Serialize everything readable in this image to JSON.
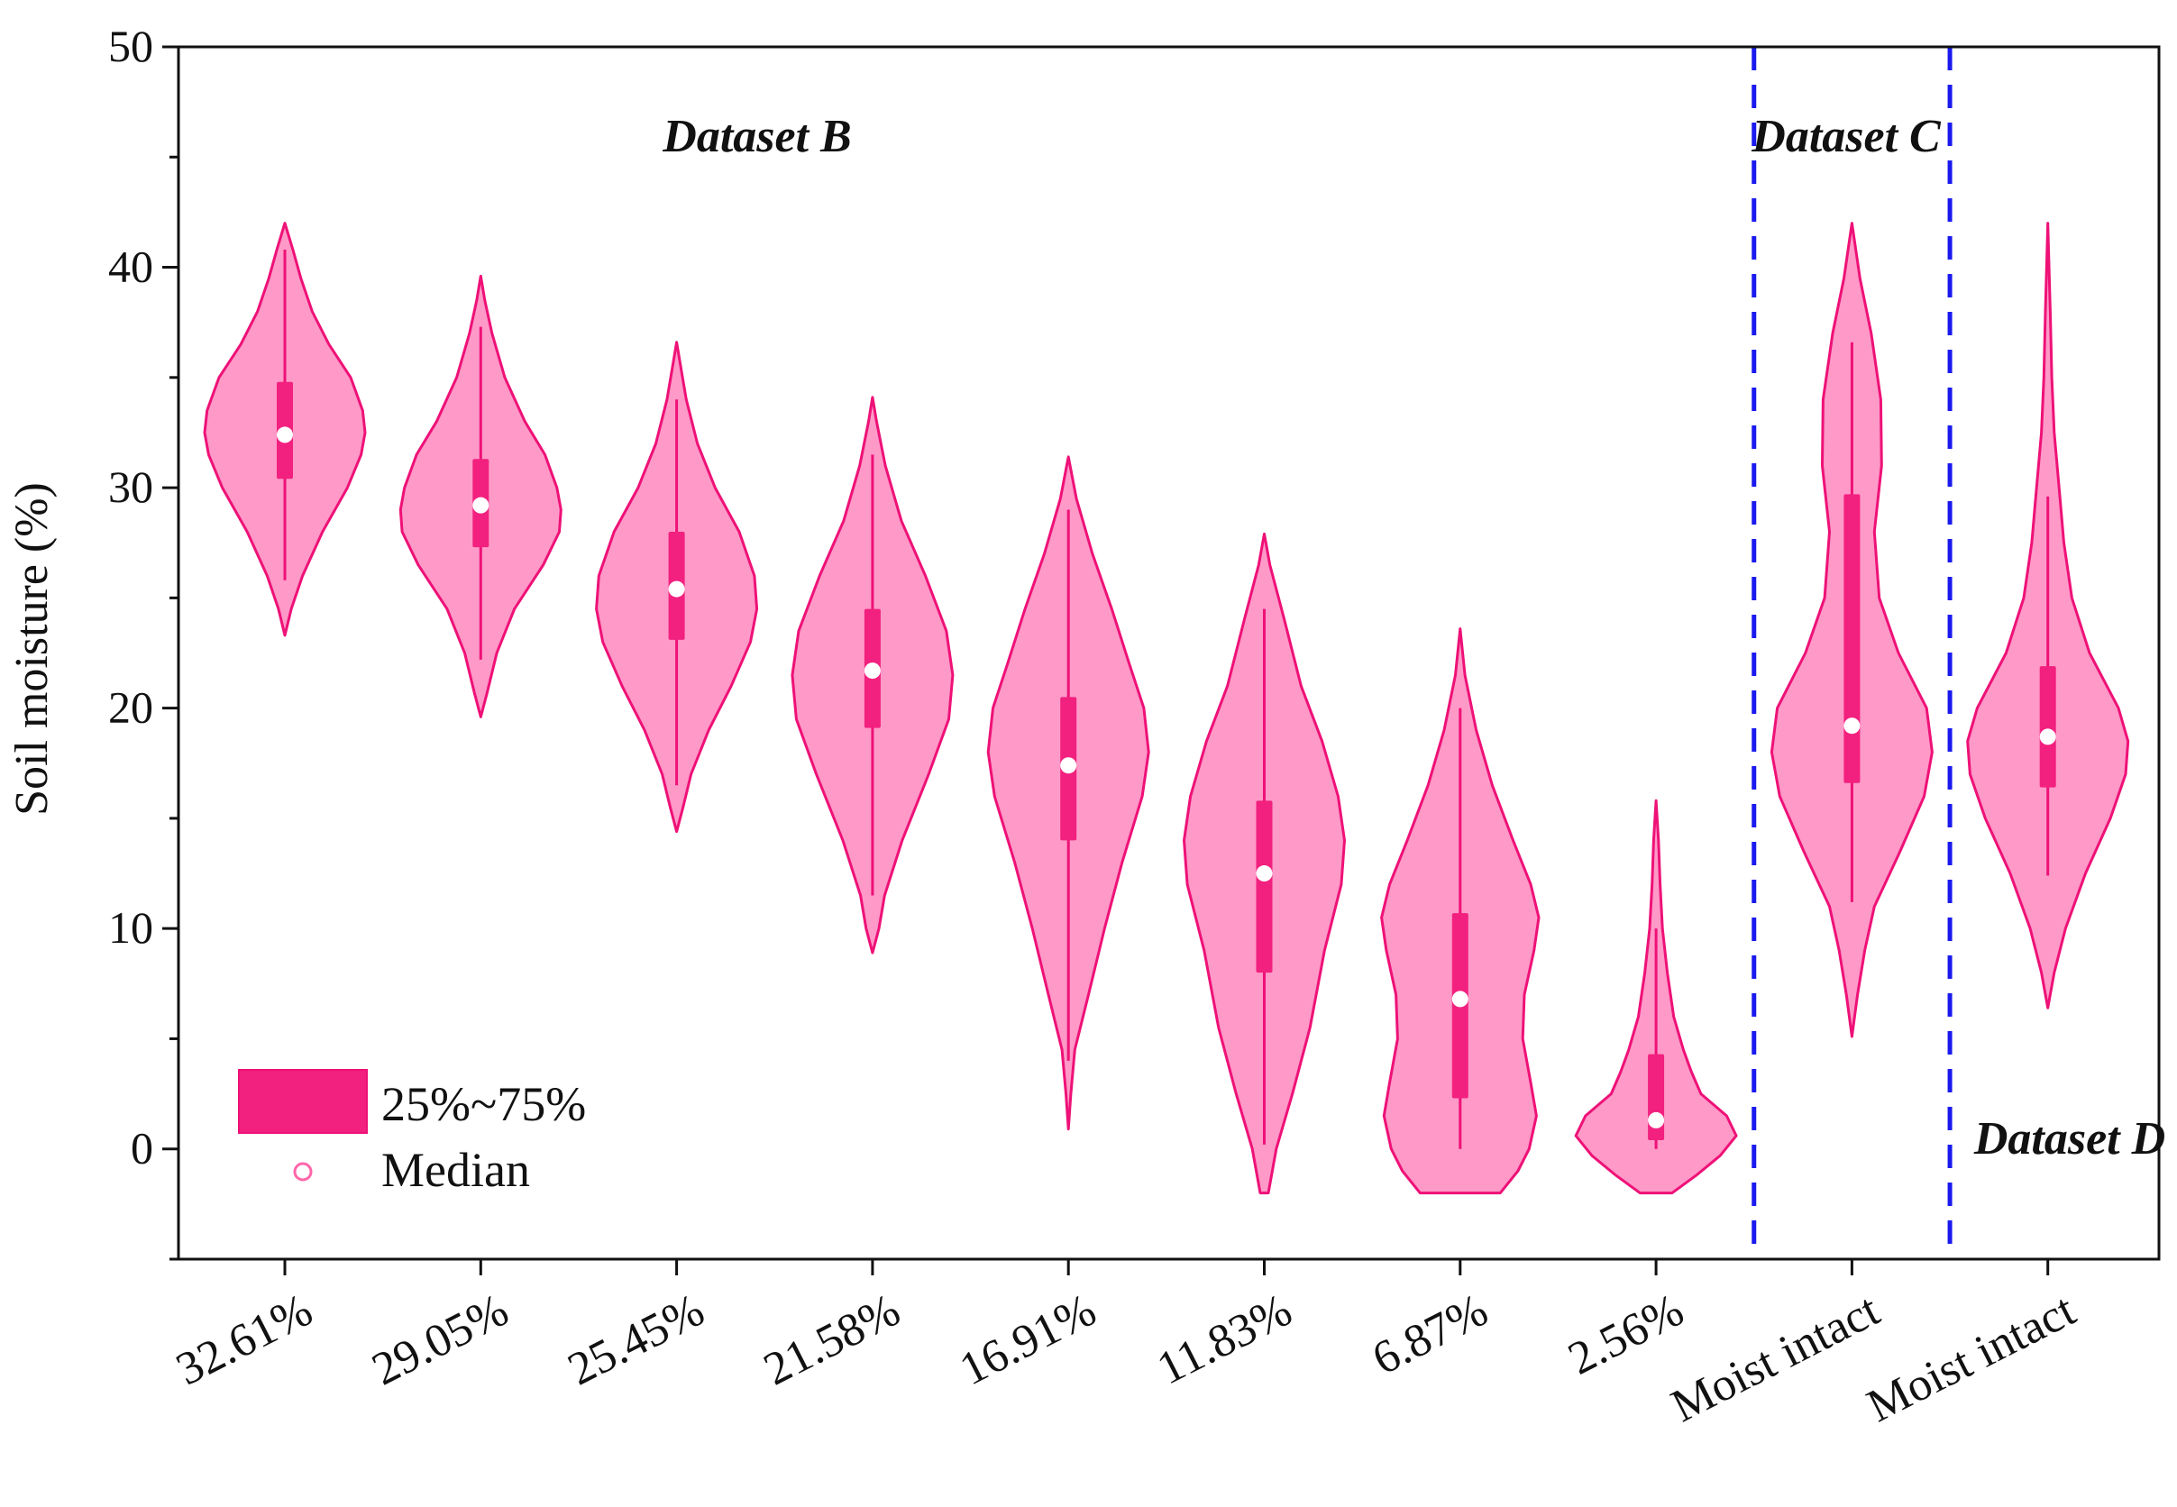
{
  "chart_data": {
    "type": "violin",
    "ylabel": "Soil moisture (%)",
    "xlabel": "",
    "ylim": [
      -5,
      50
    ],
    "yticks": [
      0,
      10,
      20,
      30,
      40,
      50
    ],
    "ytick_labels": [
      "0",
      "10",
      "20",
      "30",
      "40",
      "50"
    ],
    "grid": false,
    "colors": {
      "violin_fill": "#ff99c8",
      "violin_edge": "#ee1177",
      "iqr_box": "#f2207f",
      "median_marker": "#ffffff",
      "divider": "#1a1aee"
    },
    "legend": {
      "position": "bottom-left",
      "items": [
        {
          "label": "25%~75%",
          "symbol": "box"
        },
        {
          "label": "Median",
          "symbol": "circle"
        }
      ]
    },
    "datasets": [
      {
        "name": "Dataset B",
        "categories": [
          "32.61%",
          "29.05%",
          "25.45%",
          "21.58%",
          "16.91%",
          "11.83%",
          "6.87%",
          "2.56%"
        ]
      },
      {
        "name": "Dataset C",
        "categories": [
          "Moist intact"
        ]
      },
      {
        "name": "Dataset D",
        "categories": [
          "Moist intact"
        ]
      }
    ],
    "dividers_after_category_index": [
      7,
      8
    ],
    "series": [
      {
        "name": "32.61%",
        "dataset": "Dataset B",
        "median": 32.4,
        "q1": 30.4,
        "q3": 34.8,
        "whisker_low": 25.8,
        "whisker_high": 40.8,
        "min": 23.3,
        "max": 42.0,
        "profile": [
          [
            23.3,
            0
          ],
          [
            24.5,
            0.08
          ],
          [
            26,
            0.22
          ],
          [
            28,
            0.47
          ],
          [
            30,
            0.78
          ],
          [
            31.5,
            0.95
          ],
          [
            32.5,
            1.0
          ],
          [
            33.5,
            0.97
          ],
          [
            35,
            0.82
          ],
          [
            36.5,
            0.55
          ],
          [
            38,
            0.34
          ],
          [
            39.5,
            0.2
          ],
          [
            40.8,
            0.1
          ],
          [
            42,
            0
          ]
        ]
      },
      {
        "name": "29.05%",
        "dataset": "Dataset B",
        "median": 29.2,
        "q1": 27.3,
        "q3": 31.3,
        "whisker_low": 22.2,
        "whisker_high": 37.3,
        "min": 19.6,
        "max": 39.6,
        "profile": [
          [
            19.6,
            0
          ],
          [
            20.7,
            0.08
          ],
          [
            22.5,
            0.2
          ],
          [
            24.5,
            0.42
          ],
          [
            26.5,
            0.78
          ],
          [
            28,
            0.98
          ],
          [
            29,
            1.0
          ],
          [
            30,
            0.95
          ],
          [
            31.5,
            0.8
          ],
          [
            33,
            0.55
          ],
          [
            35,
            0.3
          ],
          [
            37,
            0.14
          ],
          [
            38.5,
            0.05
          ],
          [
            39.6,
            0
          ]
        ]
      },
      {
        "name": "25.45%",
        "dataset": "Dataset B",
        "median": 25.4,
        "q1": 23.1,
        "q3": 28.0,
        "whisker_low": 16.5,
        "whisker_high": 34.0,
        "min": 14.4,
        "max": 36.6,
        "profile": [
          [
            14.4,
            0
          ],
          [
            15.5,
            0.08
          ],
          [
            17,
            0.18
          ],
          [
            19,
            0.4
          ],
          [
            21,
            0.68
          ],
          [
            23,
            0.92
          ],
          [
            24.5,
            1.0
          ],
          [
            26,
            0.97
          ],
          [
            28,
            0.78
          ],
          [
            30,
            0.48
          ],
          [
            32,
            0.26
          ],
          [
            34,
            0.12
          ],
          [
            35.5,
            0.05
          ],
          [
            36.6,
            0
          ]
        ]
      },
      {
        "name": "21.58%",
        "dataset": "Dataset B",
        "median": 21.7,
        "q1": 19.1,
        "q3": 24.5,
        "whisker_low": 11.5,
        "whisker_high": 31.5,
        "min": 8.9,
        "max": 34.1,
        "profile": [
          [
            8.9,
            0
          ],
          [
            10,
            0.08
          ],
          [
            11.5,
            0.15
          ],
          [
            14,
            0.37
          ],
          [
            17,
            0.7
          ],
          [
            19.5,
            0.95
          ],
          [
            21.5,
            1.0
          ],
          [
            23.5,
            0.92
          ],
          [
            26,
            0.66
          ],
          [
            28.5,
            0.36
          ],
          [
            31,
            0.16
          ],
          [
            33,
            0.05
          ],
          [
            34.1,
            0
          ]
        ]
      },
      {
        "name": "16.91%",
        "dataset": "Dataset B",
        "median": 17.4,
        "q1": 14.0,
        "q3": 20.5,
        "whisker_low": 4.0,
        "whisker_high": 29.0,
        "min": 0.9,
        "max": 31.4,
        "profile": [
          [
            0.9,
            0
          ],
          [
            2.5,
            0.03
          ],
          [
            4.5,
            0.08
          ],
          [
            7,
            0.25
          ],
          [
            10,
            0.45
          ],
          [
            13,
            0.67
          ],
          [
            16,
            0.92
          ],
          [
            18,
            1.0
          ],
          [
            20,
            0.94
          ],
          [
            22,
            0.76
          ],
          [
            24.5,
            0.54
          ],
          [
            27,
            0.3
          ],
          [
            29.5,
            0.1
          ],
          [
            31.4,
            0
          ]
        ]
      },
      {
        "name": "11.83%",
        "dataset": "Dataset B",
        "median": 12.5,
        "q1": 8.0,
        "q3": 15.8,
        "whisker_low": 0.2,
        "whisker_high": 24.5,
        "min": -2.0,
        "max": 27.9,
        "profile": [
          [
            -2.0,
            0.05
          ],
          [
            -1,
            0.1
          ],
          [
            0,
            0.15
          ],
          [
            2.5,
            0.35
          ],
          [
            5.5,
            0.57
          ],
          [
            9,
            0.75
          ],
          [
            12,
            0.96
          ],
          [
            14,
            1.0
          ],
          [
            16,
            0.92
          ],
          [
            18.5,
            0.72
          ],
          [
            21,
            0.46
          ],
          [
            24,
            0.25
          ],
          [
            26.5,
            0.07
          ],
          [
            27.9,
            0
          ]
        ]
      },
      {
        "name": "6.87%",
        "dataset": "Dataset B",
        "median": 6.8,
        "q1": 2.3,
        "q3": 10.7,
        "whisker_low": 0.0,
        "whisker_high": 20.0,
        "min": -2.0,
        "max": 23.6,
        "profile": [
          [
            -2.0,
            0.5
          ],
          [
            -1,
            0.72
          ],
          [
            0,
            0.86
          ],
          [
            1.5,
            0.95
          ],
          [
            3,
            0.88
          ],
          [
            5,
            0.78
          ],
          [
            7,
            0.8
          ],
          [
            9,
            0.92
          ],
          [
            10.5,
            0.98
          ],
          [
            12,
            0.88
          ],
          [
            14,
            0.66
          ],
          [
            16.5,
            0.4
          ],
          [
            19,
            0.2
          ],
          [
            21.5,
            0.06
          ],
          [
            23.6,
            0
          ]
        ]
      },
      {
        "name": "2.56%",
        "dataset": "Dataset B",
        "median": 1.3,
        "q1": 0.4,
        "q3": 4.3,
        "whisker_low": 0.0,
        "whisker_high": 10.0,
        "min": -2.0,
        "max": 15.8,
        "profile": [
          [
            -2.0,
            0.2
          ],
          [
            -1.2,
            0.5
          ],
          [
            -0.3,
            0.8
          ],
          [
            0.6,
            1.0
          ],
          [
            1.5,
            0.88
          ],
          [
            2.5,
            0.56
          ],
          [
            3.5,
            0.44
          ],
          [
            4.5,
            0.34
          ],
          [
            6,
            0.22
          ],
          [
            8,
            0.14
          ],
          [
            10,
            0.08
          ],
          [
            12,
            0.05
          ],
          [
            14,
            0.03
          ],
          [
            15.8,
            0
          ]
        ]
      },
      {
        "name": "Moist intact",
        "dataset": "Dataset C",
        "median": 19.2,
        "q1": 16.6,
        "q3": 29.7,
        "whisker_low": 11.2,
        "whisker_high": 36.6,
        "min": 5.1,
        "max": 42.0,
        "profile": [
          [
            5.1,
            0
          ],
          [
            7,
            0.07
          ],
          [
            9,
            0.16
          ],
          [
            11,
            0.28
          ],
          [
            13.5,
            0.6
          ],
          [
            16,
            0.9
          ],
          [
            18,
            1.0
          ],
          [
            20,
            0.93
          ],
          [
            22.5,
            0.58
          ],
          [
            25,
            0.34
          ],
          [
            28,
            0.28
          ],
          [
            31,
            0.37
          ],
          [
            34,
            0.36
          ],
          [
            37,
            0.24
          ],
          [
            39.5,
            0.1
          ],
          [
            42,
            0
          ]
        ]
      },
      {
        "name": "Moist intact",
        "dataset": "Dataset D",
        "median": 18.7,
        "q1": 16.4,
        "q3": 21.9,
        "whisker_low": 12.4,
        "whisker_high": 29.6,
        "min": 6.4,
        "max": 42.0,
        "profile": [
          [
            6.4,
            0
          ],
          [
            8,
            0.08
          ],
          [
            10,
            0.22
          ],
          [
            12.5,
            0.47
          ],
          [
            15,
            0.78
          ],
          [
            17,
            0.97
          ],
          [
            18.5,
            1.0
          ],
          [
            20,
            0.88
          ],
          [
            22.5,
            0.52
          ],
          [
            25,
            0.3
          ],
          [
            27.5,
            0.2
          ],
          [
            30,
            0.14
          ],
          [
            32.5,
            0.08
          ],
          [
            35,
            0.05
          ],
          [
            38,
            0.03
          ],
          [
            42,
            0
          ]
        ]
      }
    ]
  }
}
